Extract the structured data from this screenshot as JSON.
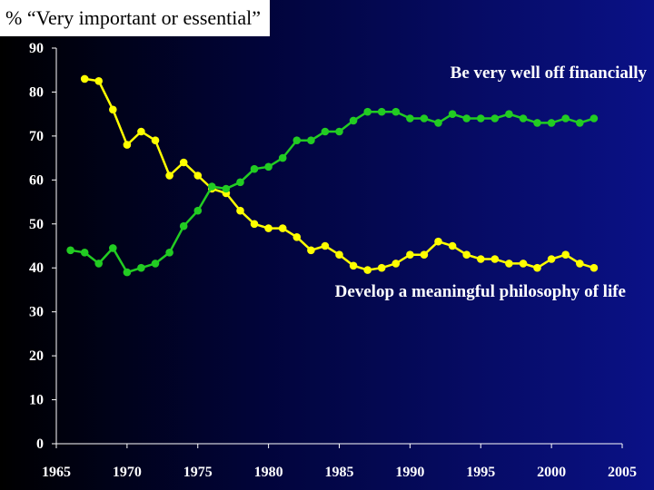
{
  "title": "% “Very important or essential”",
  "chart_data": {
    "type": "line",
    "title": "% “Very important or essential”",
    "xlabel": "",
    "ylabel": "",
    "xlim": [
      1965,
      2005
    ],
    "ylim": [
      0,
      90
    ],
    "x_ticks": [
      1965,
      1970,
      1975,
      1980,
      1985,
      1990,
      1995,
      2000,
      2005
    ],
    "y_ticks": [
      0,
      10,
      20,
      30,
      40,
      50,
      60,
      70,
      80,
      90
    ],
    "grid": false,
    "series": [
      {
        "name": "Develop a meaningful philosophy of life",
        "color": "#ffff00",
        "points": [
          [
            1967,
            83
          ],
          [
            1968,
            82.5
          ],
          [
            1969,
            76
          ],
          [
            1970,
            68
          ],
          [
            1971,
            71
          ],
          [
            1972,
            69
          ],
          [
            1973,
            61
          ],
          [
            1974,
            64
          ],
          [
            1975,
            61
          ],
          [
            1976,
            58
          ],
          [
            1977,
            57
          ],
          [
            1978,
            53
          ],
          [
            1979,
            50
          ],
          [
            1980,
            49
          ],
          [
            1981,
            49
          ],
          [
            1982,
            47
          ],
          [
            1983,
            44
          ],
          [
            1984,
            45
          ],
          [
            1985,
            43
          ],
          [
            1986,
            40.5
          ],
          [
            1987,
            39.5
          ],
          [
            1988,
            40
          ],
          [
            1989,
            41
          ],
          [
            1990,
            43
          ],
          [
            1991,
            43
          ],
          [
            1992,
            46
          ],
          [
            1993,
            45
          ],
          [
            1994,
            43
          ],
          [
            1995,
            42
          ],
          [
            1996,
            42
          ],
          [
            1997,
            41
          ],
          [
            1998,
            41
          ],
          [
            1999,
            40
          ],
          [
            2000,
            42
          ],
          [
            2001,
            43
          ],
          [
            2002,
            41
          ],
          [
            2003,
            40
          ]
        ]
      },
      {
        "name": "Be very well off financially",
        "color": "#22cc22",
        "points": [
          [
            1966,
            44
          ],
          [
            1967,
            43.5
          ],
          [
            1968,
            41
          ],
          [
            1969,
            44.5
          ],
          [
            1970,
            39
          ],
          [
            1971,
            40
          ],
          [
            1972,
            41
          ],
          [
            1973,
            43.5
          ],
          [
            1974,
            49.5
          ],
          [
            1975,
            53
          ],
          [
            1976,
            58.5
          ],
          [
            1977,
            58
          ],
          [
            1978,
            59.5
          ],
          [
            1979,
            62.5
          ],
          [
            1980,
            63
          ],
          [
            1981,
            65
          ],
          [
            1982,
            69
          ],
          [
            1983,
            69
          ],
          [
            1984,
            71
          ],
          [
            1985,
            71
          ],
          [
            1986,
            73.5
          ],
          [
            1987,
            75.5
          ],
          [
            1988,
            75.5
          ],
          [
            1989,
            75.5
          ],
          [
            1990,
            74
          ],
          [
            1991,
            74
          ],
          [
            1992,
            73
          ],
          [
            1993,
            75
          ],
          [
            1994,
            74
          ],
          [
            1995,
            74
          ],
          [
            1996,
            74
          ],
          [
            1997,
            75
          ],
          [
            1998,
            74
          ],
          [
            1999,
            73
          ],
          [
            2000,
            73
          ],
          [
            2001,
            74
          ],
          [
            2002,
            73
          ],
          [
            2003,
            74
          ]
        ]
      }
    ],
    "annotations": [
      {
        "text": "Be very well off financially",
        "series": 1
      },
      {
        "text": "Develop a meaningful philosophy of life",
        "series": 0
      }
    ]
  }
}
